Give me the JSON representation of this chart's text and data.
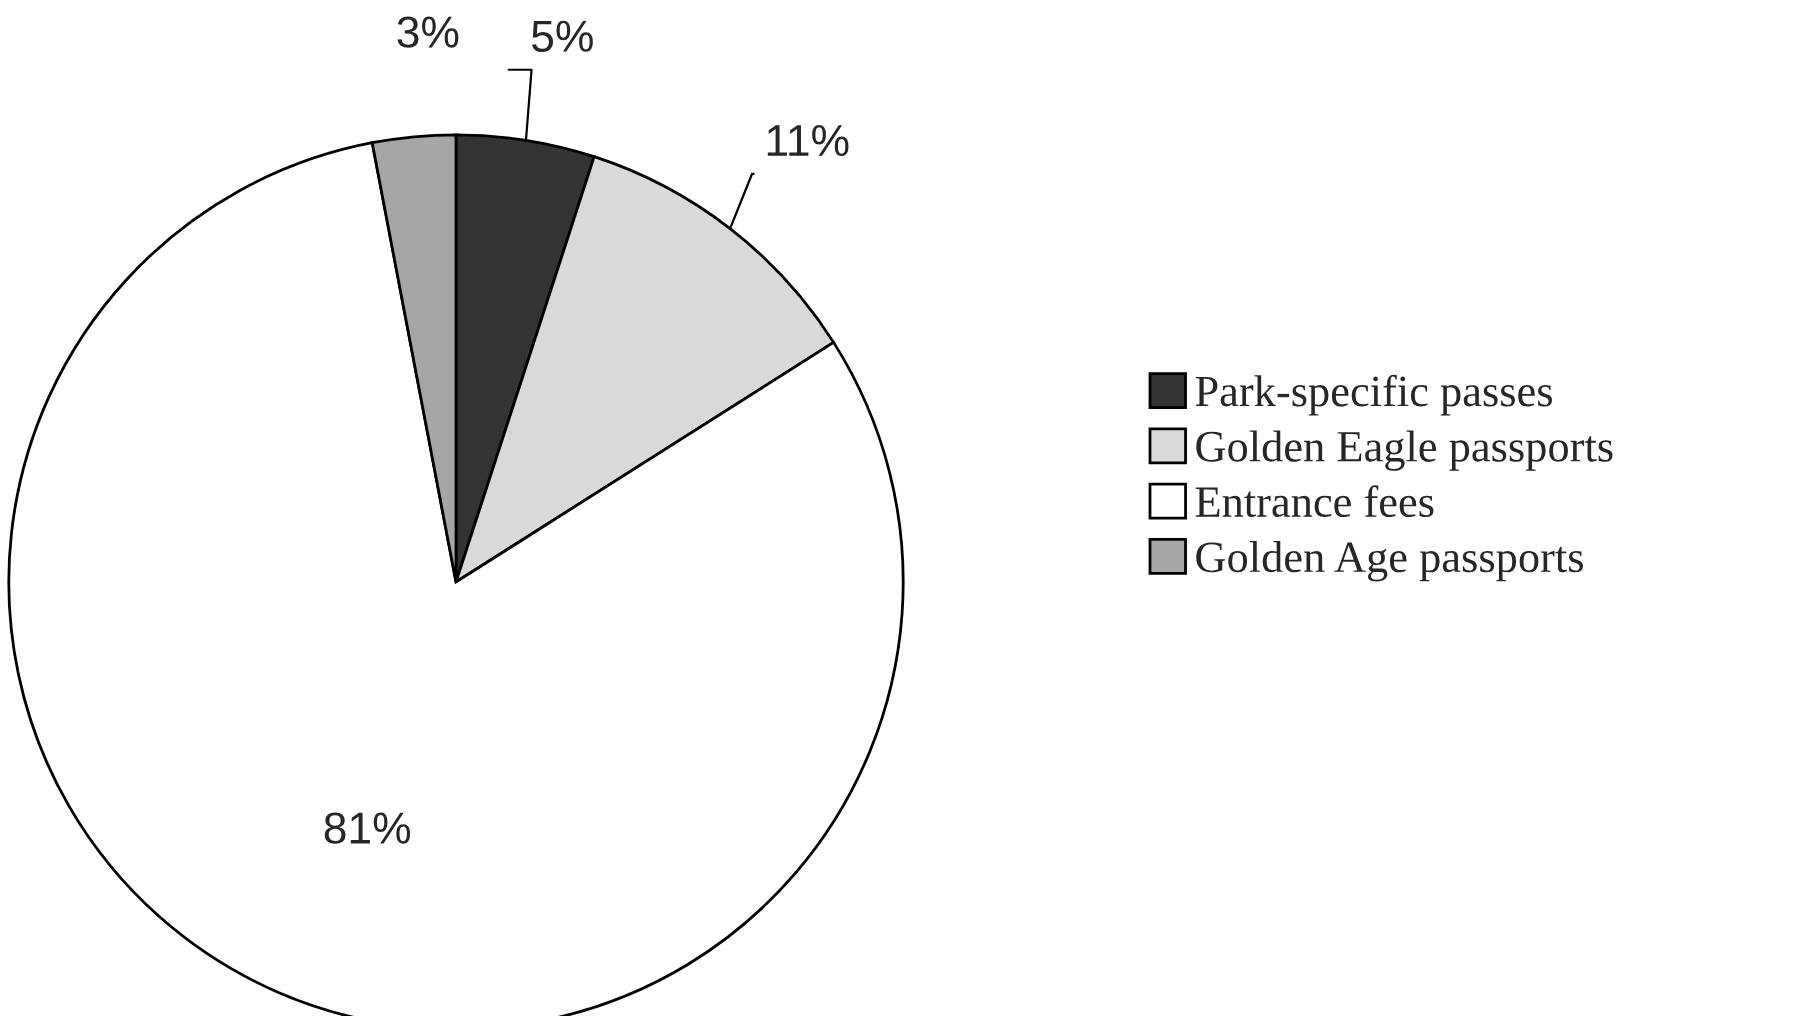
{
  "chart_data": {
    "type": "pie",
    "categories": [
      "Park-specific passes",
      "Golden Eagle passports",
      "Entrance fees",
      "Golden Age passports"
    ],
    "values": [
      5,
      11,
      81,
      3
    ],
    "value_labels": [
      "5%",
      "11%",
      "81%",
      "3%"
    ],
    "colors": [
      "#333333",
      "#d9d9d9",
      "#ffffff",
      "#a6a6a6"
    ],
    "legend": "right"
  }
}
